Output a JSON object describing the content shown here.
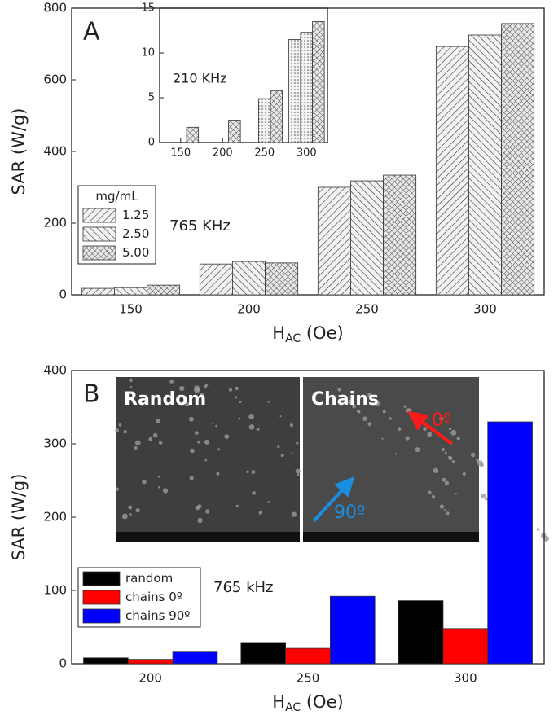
{
  "chart_data": [
    {
      "type": "bar",
      "panel": "A",
      "y_label": "SAR (W/g)",
      "x_label": "H",
      "x_label_sub": "AC",
      "x_label_unit": " (Oe)",
      "annotation": "765 KHz",
      "legend_title": "mg/mL",
      "legend": "lower-left",
      "categories": [
        "150",
        "200",
        "250",
        "300"
      ],
      "series": [
        {
          "name": "1.25",
          "pattern": "diag-right",
          "color": "#333333",
          "values": [
            18,
            86,
            300,
            693
          ]
        },
        {
          "name": "2.50",
          "pattern": "diag-left",
          "color": "#333333",
          "values": [
            20,
            93,
            318,
            725
          ]
        },
        {
          "name": "5.00",
          "pattern": "cross",
          "color": "#333333",
          "values": [
            27,
            89,
            334,
            757
          ]
        }
      ],
      "ylim": [
        0,
        800
      ],
      "yticks": [
        0,
        200,
        400,
        600,
        800
      ]
    },
    {
      "type": "bar",
      "annotation": "210 KHz",
      "categories": [
        "150",
        "200",
        "250",
        "300"
      ],
      "series": [
        {
          "name": "1.25",
          "pattern": "dots",
          "color": "#333333",
          "values": [
            null,
            null,
            null,
            11.5
          ]
        },
        {
          "name": "2.50",
          "pattern": "dots",
          "color": "#333333",
          "values": [
            null,
            null,
            4.9,
            12.3
          ]
        },
        {
          "name": "5.00",
          "pattern": "cross",
          "color": "#333333",
          "values": [
            1.7,
            2.5,
            5.8,
            13.5
          ]
        }
      ],
      "ylim": [
        0,
        15
      ],
      "yticks": [
        0,
        5,
        10,
        15
      ]
    },
    {
      "type": "bar",
      "panel": "B",
      "y_label": "SAR (W/g)",
      "x_label": "H",
      "x_label_sub": "AC",
      "x_label_unit": " (Oe)",
      "annotation": "765 kHz",
      "legend": "lower-left",
      "images": [
        {
          "label": "Random"
        },
        {
          "label": "Chains",
          "arrows": [
            "0º",
            "90º"
          ]
        }
      ],
      "categories": [
        "200",
        "250",
        "300"
      ],
      "series": [
        {
          "name": "random",
          "color": "#000000",
          "values": [
            8,
            29,
            86
          ]
        },
        {
          "name": "chains 0º",
          "color": "#ff0000",
          "values": [
            6,
            21,
            48
          ]
        },
        {
          "name": "chains 90º",
          "color": "#0000ff",
          "values": [
            17,
            92,
            330
          ]
        }
      ],
      "ylim": [
        0,
        400
      ],
      "yticks": [
        0,
        100,
        200,
        300,
        400
      ]
    }
  ]
}
